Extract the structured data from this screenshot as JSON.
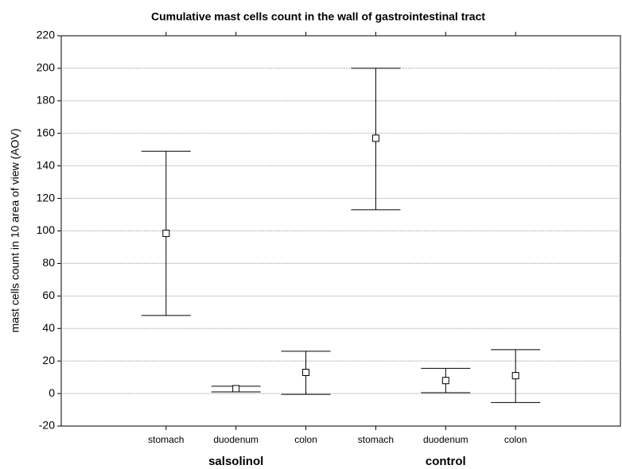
{
  "chart_data": {
    "type": "errorbar",
    "title": "Cumulative mast cells count in the wall of gastrointestinal tract",
    "ylabel": "mast cells count in 10 area of view (AOV)",
    "categories": [
      "stomach",
      "duodenum",
      "colon",
      "stomach",
      "duodenum",
      "colon"
    ],
    "groups": [
      "salsolinol",
      "control"
    ],
    "values": [
      98.5,
      3,
      13,
      157,
      8,
      11
    ],
    "lower": [
      48,
      1,
      -0.5,
      113,
      0.5,
      -5.5
    ],
    "upper": [
      149,
      4.5,
      26,
      200,
      15.5,
      27
    ],
    "ylim": [
      -20,
      220
    ],
    "yticks": [
      -20,
      0,
      20,
      40,
      60,
      80,
      100,
      120,
      140,
      160,
      180,
      200,
      220
    ],
    "grid": true,
    "color": "#000000"
  }
}
